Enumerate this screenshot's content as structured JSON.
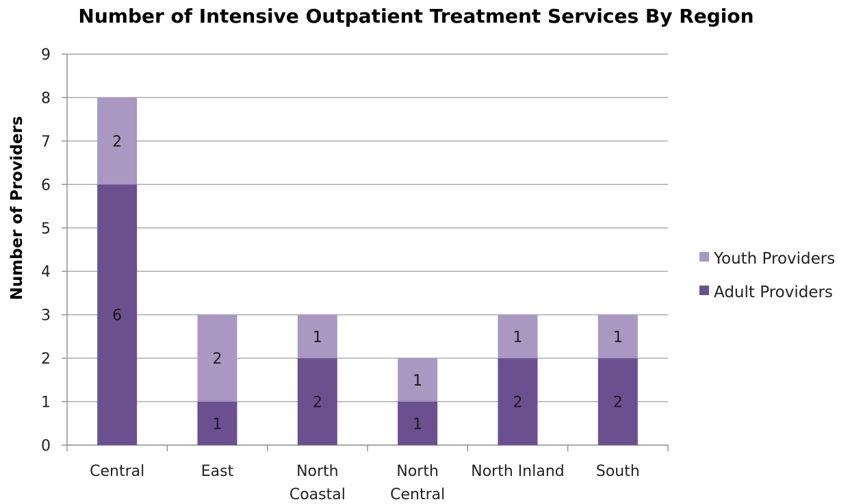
{
  "chart_data": {
    "type": "bar",
    "stacked": true,
    "title": "Number of Intensive Outpatient Treatment Services By Region",
    "ylabel": "Number of Providers",
    "xlabel": "",
    "ylim": [
      0,
      9
    ],
    "yticks": [
      "0",
      "1",
      "2",
      "3",
      "4",
      "5",
      "6",
      "7",
      "8",
      "9"
    ],
    "grid": true,
    "legend_position": "right",
    "categories": [
      [
        "Central"
      ],
      [
        "East"
      ],
      [
        "North",
        "Coastal"
      ],
      [
        "North",
        "Central"
      ],
      [
        "North Inland"
      ],
      [
        "South"
      ]
    ],
    "series": [
      {
        "name": "Adult Providers",
        "values": [
          6,
          1,
          2,
          1,
          2,
          2
        ],
        "color": "#6b5090"
      },
      {
        "name": "Youth Providers",
        "values": [
          2,
          2,
          1,
          1,
          1,
          1
        ],
        "color": "#a898c2"
      }
    ],
    "legend": [
      {
        "name": "Youth Providers",
        "color": "#a898c2"
      },
      {
        "name": "Adult Providers",
        "color": "#6b5090"
      }
    ]
  }
}
